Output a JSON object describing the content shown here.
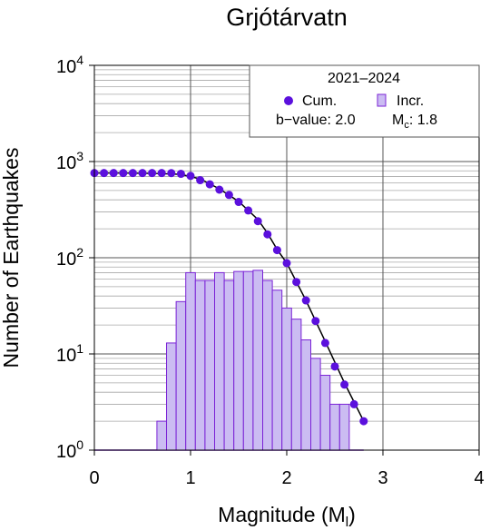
{
  "chart_data": {
    "type": "bar",
    "title": "Grjótárvatn",
    "xlabel": "Magnitude (M",
    "xlabel_sub": "l",
    "xlabel_end": ")",
    "ylabel": "Number of Earthquakes",
    "x_ticks": [
      "0",
      "1",
      "2",
      "3",
      "4"
    ],
    "y_ticks": [
      {
        "base": "10",
        "exp": "0"
      },
      {
        "base": "10",
        "exp": "1"
      },
      {
        "base": "10",
        "exp": "2"
      },
      {
        "base": "10",
        "exp": "3"
      },
      {
        "base": "10",
        "exp": "4"
      }
    ],
    "xlim": [
      0,
      4
    ],
    "ylim": [
      1,
      10000
    ],
    "yscale": "log",
    "grid": true,
    "legend": {
      "position": "top-right",
      "title": "2021–2024",
      "cum_label": "Cum.",
      "incr_label": "Incr.",
      "bvalue_text": "b−value: 2.0",
      "mc_prefix": "M",
      "mc_sub": "c",
      "mc_text": ": 1.8"
    },
    "bar_width": 0.1,
    "bar_color": "#cbbcf2",
    "bar_edge_color": "#7b23d6",
    "point_color": "#5b10dd",
    "fit_color": "#000000",
    "incremental": {
      "name": "Incr.",
      "x": [
        0.7,
        0.8,
        0.9,
        1.0,
        1.1,
        1.2,
        1.3,
        1.4,
        1.5,
        1.6,
        1.7,
        1.8,
        1.9,
        2.0,
        2.1,
        2.2,
        2.3,
        2.4,
        2.5,
        2.6
      ],
      "values": [
        2,
        13,
        35,
        70,
        58,
        58,
        70,
        58,
        72,
        72,
        74,
        58,
        46,
        30,
        23,
        14,
        9,
        6,
        3,
        3
      ]
    },
    "cumulative": {
      "name": "Cum.",
      "x": [
        0.0,
        0.1,
        0.2,
        0.3,
        0.4,
        0.5,
        0.6,
        0.7,
        0.8,
        0.9,
        1.0,
        1.1,
        1.2,
        1.3,
        1.4,
        1.5,
        1.6,
        1.7,
        1.8,
        1.9,
        2.0,
        2.1,
        2.2,
        2.3,
        2.4,
        2.5,
        2.6,
        2.7,
        2.8
      ],
      "values": [
        760,
        760,
        760,
        760,
        760,
        760,
        760,
        760,
        758,
        745,
        710,
        640,
        580,
        510,
        450,
        380,
        310,
        240,
        175,
        120,
        88,
        56,
        36,
        22,
        13,
        7.4,
        4.8,
        3,
        2
      ]
    },
    "fit": {
      "x": [
        0.0,
        0.3,
        0.6,
        0.9,
        1.1,
        1.3,
        1.5,
        1.7,
        1.8,
        1.9,
        2.0,
        2.2,
        2.4,
        2.6,
        2.8
      ],
      "values": [
        760,
        760,
        755,
        735,
        660,
        520,
        385,
        250,
        180,
        122,
        88,
        36,
        13.5,
        5,
        2
      ]
    }
  }
}
